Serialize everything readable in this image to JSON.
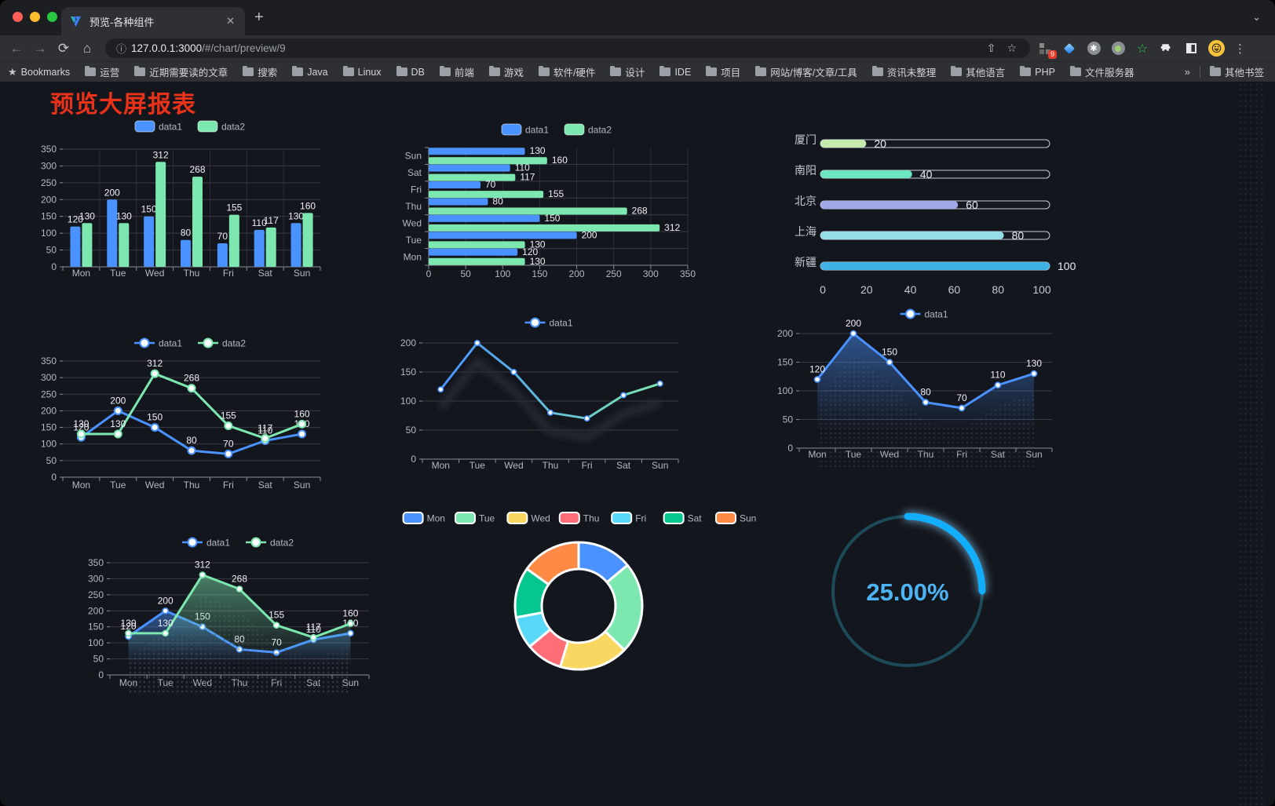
{
  "browser": {
    "tab_title": "预览-各种组件",
    "icons": {
      "close_tab": "✕",
      "new_tab": "+",
      "strip_chevron": "⌄",
      "back": "←",
      "forward": "→",
      "reload": "⟳",
      "home": "⌂",
      "info": "ⓘ",
      "share": "⇧",
      "star": "☆",
      "cmd": "✱",
      "green_star": "☆",
      "menu": "⋮",
      "avatar_emoji": "😛",
      "bookmarks_star": "★",
      "overflow_chevron": "»"
    },
    "extension_badge": "9",
    "url": {
      "host": "127.0.0.1:3000",
      "path": "/#/chart/preview/9"
    },
    "bookmarks_label": "Bookmarks",
    "bookmarks": [
      "运营",
      "近期需要读的文章",
      "搜索",
      "Java",
      "Linux",
      "DB",
      "前端",
      "游戏",
      "软件/硬件",
      "设计",
      "IDE",
      "项目",
      "网站/博客/文章/工具",
      "资讯未整理",
      "其他语言",
      "PHP",
      "文件服务器"
    ],
    "other_bookmarks": "其他书签"
  },
  "page": {
    "title": "预览大屏报表",
    "title_color": "#e8321a"
  },
  "colors": {
    "blue": "#4992ff",
    "green": "#7ce8b0",
    "axis_text": "#b4b7c3",
    "value_text": "#eef0f5",
    "grid": "#3a3b44",
    "grid_dim": "#2d2e36",
    "axis_line": "#8a8d97"
  },
  "chart_data": [
    {
      "id": "bar_grouped",
      "type": "bar",
      "categories": [
        "Mon",
        "Tue",
        "Wed",
        "Thu",
        "Fri",
        "Sat",
        "Sun"
      ],
      "series": [
        {
          "name": "data1",
          "color": "#4992ff",
          "values": [
            120,
            200,
            150,
            80,
            70,
            110,
            130
          ]
        },
        {
          "name": "data2",
          "color": "#7ce8b0",
          "values": [
            130,
            130,
            312,
            268,
            155,
            117,
            160
          ]
        }
      ],
      "ylim": [
        0,
        350
      ],
      "ystep": 50,
      "legend_position": "top",
      "grid": true
    },
    {
      "id": "bar_horizontal",
      "type": "bar",
      "orientation": "horizontal",
      "categories": [
        "Mon",
        "Tue",
        "Wed",
        "Thu",
        "Fri",
        "Sat",
        "Sun"
      ],
      "series": [
        {
          "name": "data1",
          "color": "#4992ff",
          "values": [
            120,
            200,
            150,
            80,
            70,
            110,
            130
          ]
        },
        {
          "name": "data2",
          "color": "#7ce8b0",
          "values": [
            130,
            130,
            312,
            268,
            155,
            117,
            160
          ]
        }
      ],
      "xlim": [
        0,
        350
      ],
      "xstep": 50,
      "legend_position": "top",
      "grid": true
    },
    {
      "id": "progress_bars",
      "type": "bar",
      "orientation": "horizontal",
      "categories": [
        "厦门",
        "南阳",
        "北京",
        "上海",
        "新疆"
      ],
      "values": [
        20,
        40,
        60,
        80,
        100
      ],
      "colors": [
        "#c4ebad",
        "#6be6c1",
        "#a0a7e6",
        "#96dee8",
        "#3fb1e3"
      ],
      "xlim": [
        0,
        100
      ],
      "xticks": [
        0,
        20,
        40,
        60,
        80,
        100
      ]
    },
    {
      "id": "line_dual",
      "type": "line",
      "categories": [
        "Mon",
        "Tue",
        "Wed",
        "Thu",
        "Fri",
        "Sat",
        "Sun"
      ],
      "series": [
        {
          "name": "data1",
          "color": "#4992ff",
          "values": [
            120,
            200,
            150,
            80,
            70,
            110,
            130
          ]
        },
        {
          "name": "data2",
          "color": "#7ce8b0",
          "values": [
            130,
            130,
            312,
            268,
            155,
            117,
            160
          ]
        }
      ],
      "ylim": [
        0,
        350
      ],
      "ystep": 50,
      "labels": true
    },
    {
      "id": "line_gradient",
      "type": "line",
      "categories": [
        "Mon",
        "Tue",
        "Wed",
        "Thu",
        "Fri",
        "Sat",
        "Sun"
      ],
      "series": [
        {
          "name": "data1",
          "color": "#4992ff",
          "gradient": [
            "#4992ff",
            "#7ce8b0"
          ],
          "values": [
            120,
            200,
            150,
            80,
            70,
            110,
            130
          ]
        }
      ],
      "ylim": [
        0,
        200
      ],
      "ystep": 50,
      "labels": false,
      "shadow": true
    },
    {
      "id": "area_single",
      "type": "area",
      "categories": [
        "Mon",
        "Tue",
        "Wed",
        "Thu",
        "Fri",
        "Sat",
        "Sun"
      ],
      "series": [
        {
          "name": "data1",
          "color": "#4992ff",
          "values": [
            120,
            200,
            150,
            80,
            70,
            110,
            130
          ]
        }
      ],
      "ylim": [
        0,
        200
      ],
      "ystep": 50,
      "labels": true
    },
    {
      "id": "area_dual",
      "type": "area",
      "categories": [
        "Mon",
        "Tue",
        "Wed",
        "Thu",
        "Fri",
        "Sat",
        "Sun"
      ],
      "series": [
        {
          "name": "data1",
          "color": "#4992ff",
          "values": [
            120,
            200,
            150,
            80,
            70,
            110,
            130
          ]
        },
        {
          "name": "data2",
          "color": "#7ce8b0",
          "values": [
            130,
            130,
            312,
            268,
            155,
            117,
            160
          ]
        }
      ],
      "ylim": [
        0,
        350
      ],
      "ystep": 50,
      "labels": true
    },
    {
      "id": "donut",
      "type": "pie",
      "categories": [
        "Mon",
        "Tue",
        "Wed",
        "Thu",
        "Fri",
        "Sat",
        "Sun"
      ],
      "values": [
        120,
        200,
        150,
        80,
        70,
        110,
        130
      ],
      "colors": [
        "#4992ff",
        "#7ce8b0",
        "#f8d860",
        "#ff6e76",
        "#58d9f9",
        "#06c690",
        "#ff8a45"
      ],
      "border_color": "#ffffff",
      "inner_radius_ratio": 0.58
    },
    {
      "id": "gauge",
      "type": "gauge",
      "value": 25,
      "label": "25.00%",
      "arc_color": "#12aefb",
      "track_color": "#1d4a59",
      "text_color": "#4db4f4"
    }
  ]
}
